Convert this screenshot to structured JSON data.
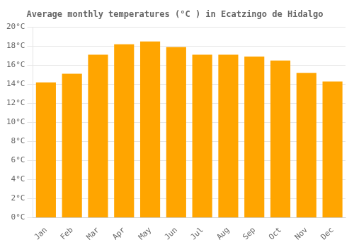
{
  "chart_data": {
    "type": "bar",
    "title": "Average monthly temperatures (°C ) in Ecatzingo de Hidalgo",
    "categories": [
      "Jan",
      "Feb",
      "Mar",
      "Apr",
      "May",
      "Jun",
      "Jul",
      "Aug",
      "Sep",
      "Oct",
      "Nov",
      "Dec"
    ],
    "values": [
      14.2,
      15.1,
      17.1,
      18.2,
      18.5,
      17.9,
      17.1,
      17.1,
      16.9,
      16.5,
      15.2,
      14.3
    ],
    "color": "#FFA500",
    "ylim": [
      0,
      20
    ],
    "yticks": [
      {
        "value": 0,
        "label": "0°C"
      },
      {
        "value": 2,
        "label": "2°C"
      },
      {
        "value": 4,
        "label": "4°C"
      },
      {
        "value": 6,
        "label": "6°C"
      },
      {
        "value": 8,
        "label": "8°C"
      },
      {
        "value": 10,
        "label": "10°C"
      },
      {
        "value": 12,
        "label": "12°C"
      },
      {
        "value": 14,
        "label": "14°C"
      },
      {
        "value": 16,
        "label": "16°C"
      },
      {
        "value": 18,
        "label": "18°C"
      },
      {
        "value": 20,
        "label": "20°C"
      }
    ],
    "grid": true
  }
}
